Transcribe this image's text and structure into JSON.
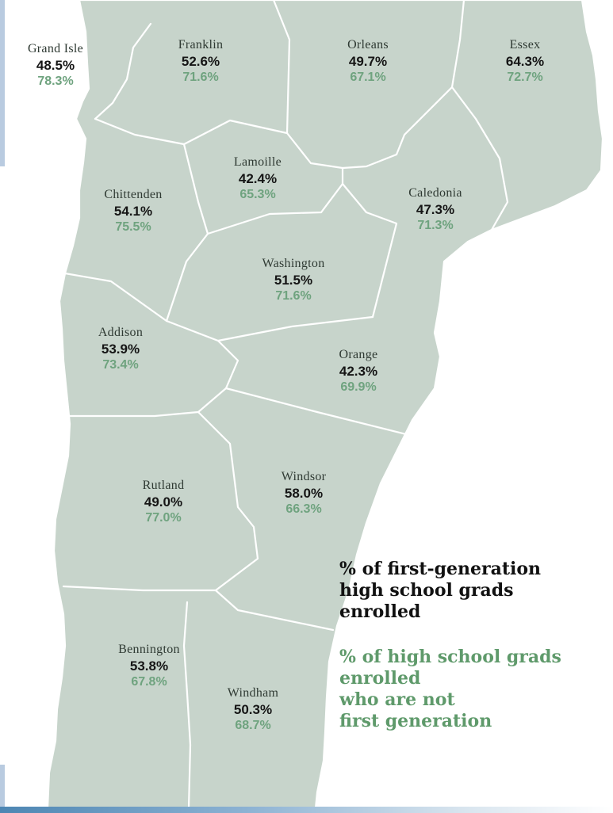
{
  "colors": {
    "map_fill": "#c7d4cb",
    "county_border": "#ffffff",
    "first_generation_text": "#151515",
    "not_first_generation_text": "#6fa37f"
  },
  "counties": [
    {
      "name": "Grand Isle",
      "first_gen": "48.5%",
      "not_first_gen": "78.3%"
    },
    {
      "name": "Franklin",
      "first_gen": "52.6%",
      "not_first_gen": "71.6%"
    },
    {
      "name": "Orleans",
      "first_gen": "49.7%",
      "not_first_gen": "67.1%"
    },
    {
      "name": "Essex",
      "first_gen": "64.3%",
      "not_first_gen": "72.7%"
    },
    {
      "name": "Lamoille",
      "first_gen": "42.4%",
      "not_first_gen": "65.3%"
    },
    {
      "name": "Chittenden",
      "first_gen": "54.1%",
      "not_first_gen": "75.5%"
    },
    {
      "name": "Caledonia",
      "first_gen": "47.3%",
      "not_first_gen": "71.3%"
    },
    {
      "name": "Washington",
      "first_gen": "51.5%",
      "not_first_gen": "71.6%"
    },
    {
      "name": "Addison",
      "first_gen": "53.9%",
      "not_first_gen": "73.4%"
    },
    {
      "name": "Orange",
      "first_gen": "42.3%",
      "not_first_gen": "69.9%"
    },
    {
      "name": "Rutland",
      "first_gen": "49.0%",
      "not_first_gen": "77.0%"
    },
    {
      "name": "Windsor",
      "first_gen": "58.0%",
      "not_first_gen": "66.3%"
    },
    {
      "name": "Bennington",
      "first_gen": "53.8%",
      "not_first_gen": "67.8%"
    },
    {
      "name": "Windham",
      "first_gen": "50.3%",
      "not_first_gen": "68.7%"
    }
  ],
  "legend": {
    "first_generation": [
      "% of first-generation",
      "high school grads",
      "enrolled"
    ],
    "not_first_generation": [
      "% of high school grads",
      "enrolled",
      "who are not",
      "first generation"
    ]
  }
}
